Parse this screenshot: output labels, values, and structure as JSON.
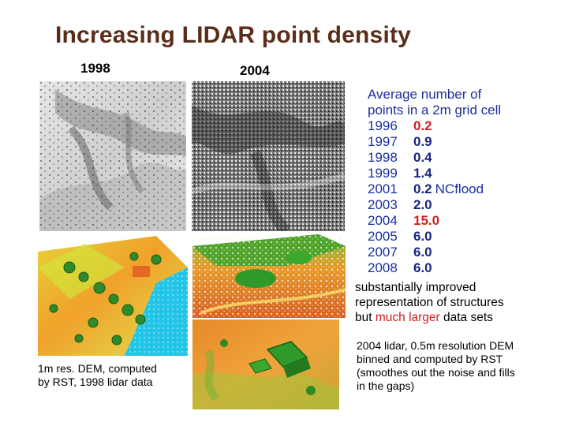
{
  "title": "Increasing LIDAR point density",
  "labels": {
    "year_left": "1998",
    "year_right": "2004"
  },
  "panels": {
    "top_left": "1998 hillshade, lidar points",
    "top_right": "2004 hillshade, lidar points",
    "bottom_left": "1998 lidar DEM",
    "bottom_right_top": "2004 lidar DEM, structures",
    "bottom_right_bottom": "2004 lidar DEM, buildings"
  },
  "stats": {
    "heading_line1": "Average number of",
    "heading_line2": "points in a 2m grid cell",
    "rows": [
      {
        "year": "1996",
        "value": "0.2",
        "highlight": "red",
        "note": ""
      },
      {
        "year": "1997",
        "value": "0.9",
        "highlight": "",
        "note": ""
      },
      {
        "year": "1998",
        "value": "0.4",
        "highlight": "",
        "note": ""
      },
      {
        "year": "1999",
        "value": "1.4",
        "highlight": "",
        "note": ""
      },
      {
        "year": "2001",
        "value": "0.2",
        "highlight": "",
        "note": "NCflood"
      },
      {
        "year": "2003",
        "value": "2.0",
        "highlight": "",
        "note": ""
      },
      {
        "year": "2004",
        "value": "15.0",
        "highlight": "red",
        "note": ""
      },
      {
        "year": "2005",
        "value": "6.0",
        "highlight": "",
        "note": ""
      },
      {
        "year": "2007",
        "value": "6.0",
        "highlight": "",
        "note": ""
      },
      {
        "year": "2008",
        "value": "6.0",
        "highlight": "",
        "note": ""
      }
    ]
  },
  "improved": {
    "line1": "substantially improved",
    "line2": "representation of structures",
    "line3_pre": "but ",
    "line3_highlight": "much larger",
    "line3_post": " data sets"
  },
  "caption_left": {
    "line1": "1m res. DEM, computed",
    "line2": "by RST, 1998 lidar data"
  },
  "caption_right": {
    "line1": "2004 lidar, 0.5m resolution DEM",
    "line2": "binned and computed by RST",
    "line3": "(smoothes out the noise and fills",
    "line4": "in the gaps)"
  },
  "colors": {
    "title": "#5a2d1a",
    "stats_text": "#1a2f9e",
    "values": "#1a2580",
    "highlight": "#d11f1f"
  }
}
